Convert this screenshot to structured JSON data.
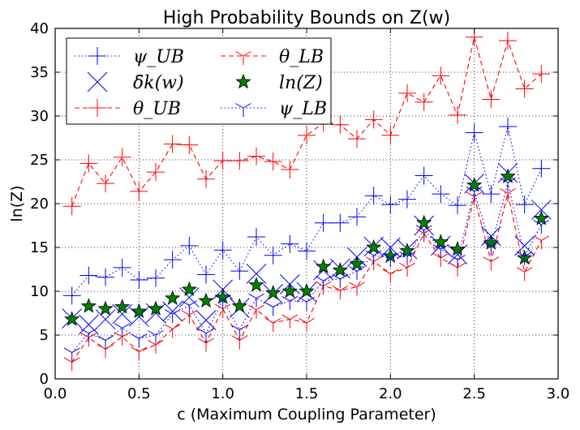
{
  "chart_data": {
    "type": "line",
    "title": "High Probability Bounds on Z(w)",
    "xlabel": "c (Maximum Coupling Parameter)",
    "ylabel": "ln(Z)",
    "xlim": [
      0.0,
      3.0
    ],
    "ylim": [
      0,
      40
    ],
    "xticks": [
      "0.0",
      "0.5",
      "1.0",
      "1.5",
      "2.0",
      "2.5",
      "3.0"
    ],
    "yticks": [
      "0",
      "5",
      "10",
      "15",
      "20",
      "25",
      "30",
      "35",
      "40"
    ],
    "grid": true,
    "legend_position": "top-left",
    "x": [
      0.1,
      0.2,
      0.3,
      0.4,
      0.5,
      0.6,
      0.7,
      0.8,
      0.9,
      1.0,
      1.1,
      1.2,
      1.3,
      1.4,
      1.5,
      1.6,
      1.7,
      1.8,
      1.9,
      2.0,
      2.1,
      2.2,
      2.3,
      2.4,
      2.5,
      2.6,
      2.7,
      2.8,
      2.9
    ],
    "series": [
      {
        "name": "ψ_UB",
        "color": "#0000ff",
        "line": "dotted",
        "marker": "plus",
        "values": [
          9.5,
          11.8,
          11.6,
          12.7,
          11.3,
          11.5,
          13.6,
          15.2,
          11.9,
          14.7,
          12.3,
          16.2,
          14.1,
          15.4,
          14.6,
          17.8,
          17.8,
          18.5,
          20.9,
          19.9,
          20.5,
          23.2,
          21.1,
          19.8,
          28.1,
          21.1,
          28.8,
          19.9,
          24.0
        ]
      },
      {
        "name": "δ̄k(w)",
        "color": "#0000ff",
        "line": "none",
        "marker": "x",
        "values": [
          6.9,
          6.2,
          6.8,
          7.4,
          7.1,
          7.5,
          7.7,
          9.3,
          6.7,
          10.2,
          8.1,
          12.0,
          9.7,
          10.8,
          9.9,
          12.4,
          12.6,
          13.9,
          15.1,
          15.0,
          14.8,
          17.5,
          15.2,
          14.2,
          22.3,
          16.3,
          23.5,
          15.2,
          19.3
        ]
      },
      {
        "name": "θ_UB",
        "color": "#ff0000",
        "line": "dashed",
        "marker": "plus",
        "values": [
          19.7,
          24.6,
          22.3,
          25.3,
          21.4,
          23.6,
          26.8,
          26.7,
          22.8,
          24.9,
          24.9,
          25.4,
          24.8,
          23.9,
          27.8,
          29.2,
          29.0,
          27.4,
          29.6,
          27.8,
          32.6,
          31.6,
          34.6,
          30.1,
          39.0,
          31.9,
          38.6,
          33.1,
          34.8
        ]
      },
      {
        "name": "θ_LB",
        "color": "#ff0000",
        "line": "dashed",
        "marker": "tri",
        "values": [
          1.9,
          4.7,
          3.4,
          4.8,
          3.1,
          3.9,
          5.7,
          7.3,
          4.1,
          8.0,
          4.4,
          7.9,
          6.4,
          6.8,
          6.4,
          10.6,
          10.1,
          10.5,
          13.4,
          12.0,
          12.7,
          16.6,
          13.8,
          12.7,
          20.8,
          13.4,
          21.2,
          12.2,
          15.8
        ]
      },
      {
        "name": "ln(Z)",
        "color": "#008000",
        "line": "none",
        "marker": "star",
        "values": [
          6.8,
          8.3,
          8.0,
          8.2,
          7.7,
          8.0,
          9.2,
          10.2,
          8.9,
          9.3,
          8.3,
          10.7,
          9.8,
          10.0,
          10.0,
          12.8,
          12.4,
          13.1,
          15.0,
          14.0,
          14.6,
          17.8,
          15.6,
          14.8,
          22.1,
          15.5,
          23.1,
          13.8,
          18.3
        ]
      },
      {
        "name": "ψ_LB",
        "color": "#0000ff",
        "line": "dotted",
        "marker": "tri",
        "values": [
          3.0,
          5.2,
          4.4,
          5.8,
          4.6,
          5.0,
          7.4,
          8.4,
          5.2,
          9.0,
          5.6,
          9.2,
          8.2,
          8.9,
          8.8,
          11.2,
          11.4,
          12.3,
          14.1,
          13.8,
          14.0,
          17.0,
          14.8,
          13.6,
          21.4,
          15.1,
          22.4,
          14.0,
          17.6
        ]
      }
    ]
  }
}
